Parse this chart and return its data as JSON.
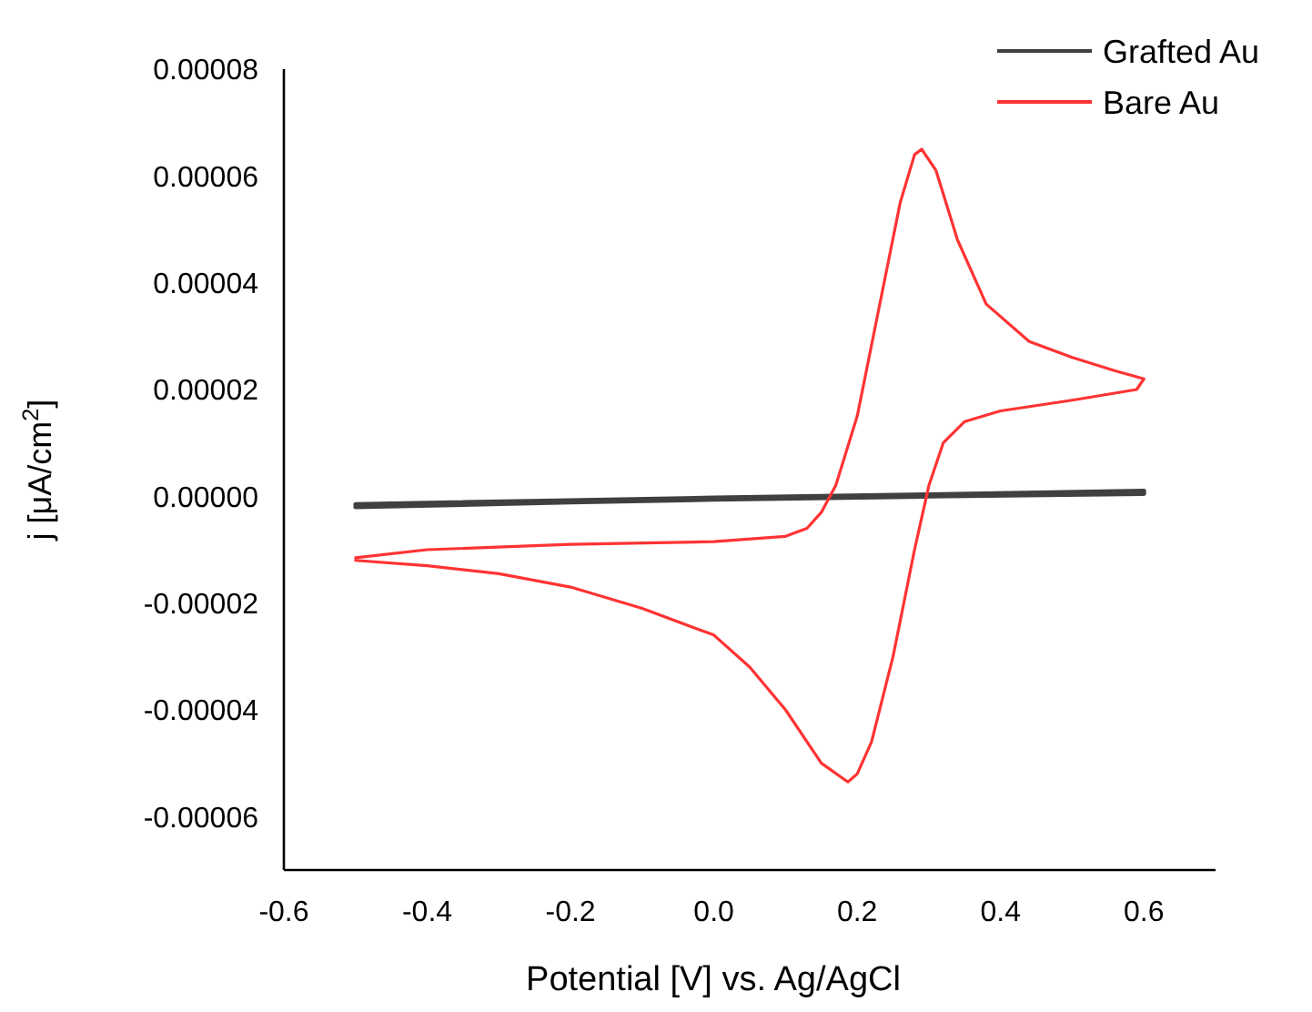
{
  "chart_data": {
    "type": "line",
    "xlabel": "Potential [V] vs. Ag/AgCl",
    "ylabel": "j [μA/cm$^{2}$]",
    "xlim": [
      -0.6,
      0.7
    ],
    "xticks": [
      -0.6,
      -0.4,
      -0.2,
      {
        "value": 0,
        "label": "0.0"
      },
      0.2,
      0.4,
      0.6
    ],
    "ylim": [
      -7e-05,
      8e-05
    ],
    "yticks": [
      {
        "value": -6e-05,
        "label": "-0.00006"
      },
      {
        "value": -4e-05,
        "label": "-0.00004"
      },
      {
        "value": -2e-05,
        "label": "-0.00002"
      },
      {
        "value": 0,
        "label": "0.00000"
      },
      {
        "value": 2e-05,
        "label": "0.00002"
      },
      {
        "value": 4e-05,
        "label": "0.00004"
      },
      {
        "value": 6e-05,
        "label": "0.00006"
      },
      {
        "value": 8e-05,
        "label": "0.00008"
      }
    ],
    "grid": false,
    "legend": "top right",
    "marker": "none",
    "line_style": "solid",
    "series": [
      {
        "name": "Grafted Au",
        "color": "#404040",
        "x": [
          -0.5,
          -0.2,
          0,
          0.3,
          0.6,
          0.6,
          0.3,
          0,
          -0.2,
          -0.5
        ],
        "values": [
          -1.5e-06,
          -8e-07,
          -3e-07,
          3e-07,
          1e-06,
          5e-07,
          0,
          -6e-07,
          -1.1e-06,
          -2e-06
        ]
      },
      {
        "name": "Bare Au",
        "color": "#ff3333",
        "x": [
          -0.5,
          -0.4,
          -0.2,
          0,
          0.1,
          0.13,
          0.15,
          0.17,
          0.2,
          0.23,
          0.26,
          0.28,
          0.29,
          0.31,
          0.34,
          0.38,
          0.44,
          0.5,
          0.56,
          0.6,
          0.59,
          0.5,
          0.4,
          0.35,
          0.32,
          0.3,
          0.28,
          0.25,
          0.22,
          0.2,
          0.187,
          0.15,
          0.1,
          0.05,
          0,
          -0.1,
          -0.2,
          -0.3,
          -0.4,
          -0.5
        ],
        "values": [
          -1.15e-05,
          -1e-05,
          -9e-06,
          -8.5e-06,
          -7.5e-06,
          -6e-06,
          -3e-06,
          2e-06,
          1.5e-05,
          3.5e-05,
          5.5e-05,
          6.4e-05,
          6.5e-05,
          6.1e-05,
          4.8e-05,
          3.6e-05,
          2.9e-05,
          2.6e-05,
          2.35e-05,
          2.2e-05,
          2e-05,
          1.8e-05,
          1.6e-05,
          1.4e-05,
          1e-05,
          2e-06,
          -1e-05,
          -3e-05,
          -4.6e-05,
          -5.2e-05,
          -5.35e-05,
          -5e-05,
          -4e-05,
          -3.2e-05,
          -2.6e-05,
          -2.1e-05,
          -1.7e-05,
          -1.45e-05,
          -1.3e-05,
          -1.2e-05
        ]
      }
    ]
  }
}
